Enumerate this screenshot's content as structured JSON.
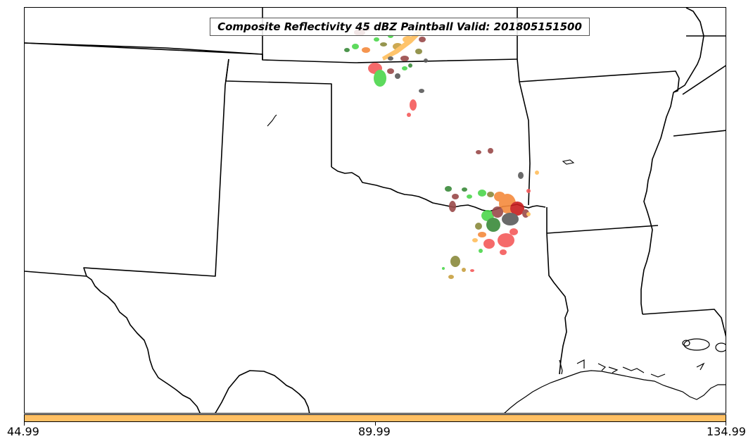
{
  "title": "Composite Reflectivity 45 dBZ Paintball Valid: 201805151500",
  "colorbar": {
    "fill_color": "#ffc064",
    "min_label": "44.99",
    "mid_label": "89.99",
    "max_label": "134.99"
  },
  "paintball_colors": {
    "red": "#f45a5a",
    "green": "#4cd64c",
    "orange": "#f58a3c",
    "light_orange": "#ffbe5c",
    "brown": "#9a4a4a",
    "dark_gray": "#5a5a5a",
    "olive": "#8a8a3c",
    "dark_red": "#c81e1e",
    "dark_green": "#3a8a3a"
  }
}
